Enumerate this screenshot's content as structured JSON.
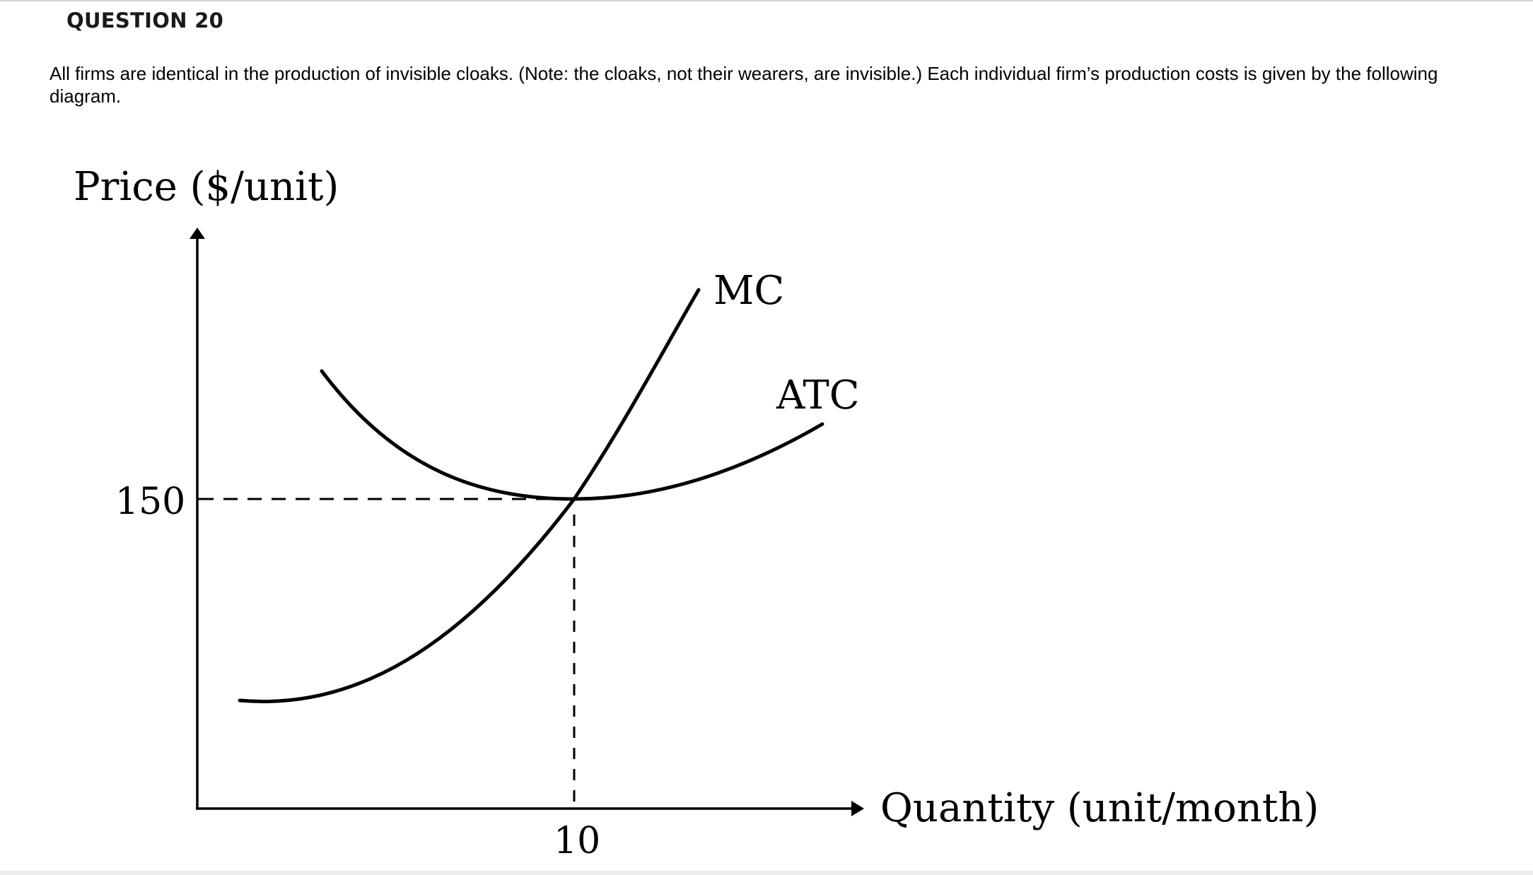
{
  "question": {
    "title": "QUESTION 20",
    "body": "All firms are identical in the production of invisible cloaks. (Note: the cloaks, not their wearers, are invisible.) Each individual firm’s production costs is given by the following diagram."
  },
  "diagram": {
    "y_axis_label": "Price ($/unit)",
    "x_axis_label": "Quantity (unit/month)",
    "y_tick_label": "150",
    "x_tick_label": "10",
    "mc_label": "MC",
    "atc_label": "ATC",
    "line_color": "#000000"
  }
}
